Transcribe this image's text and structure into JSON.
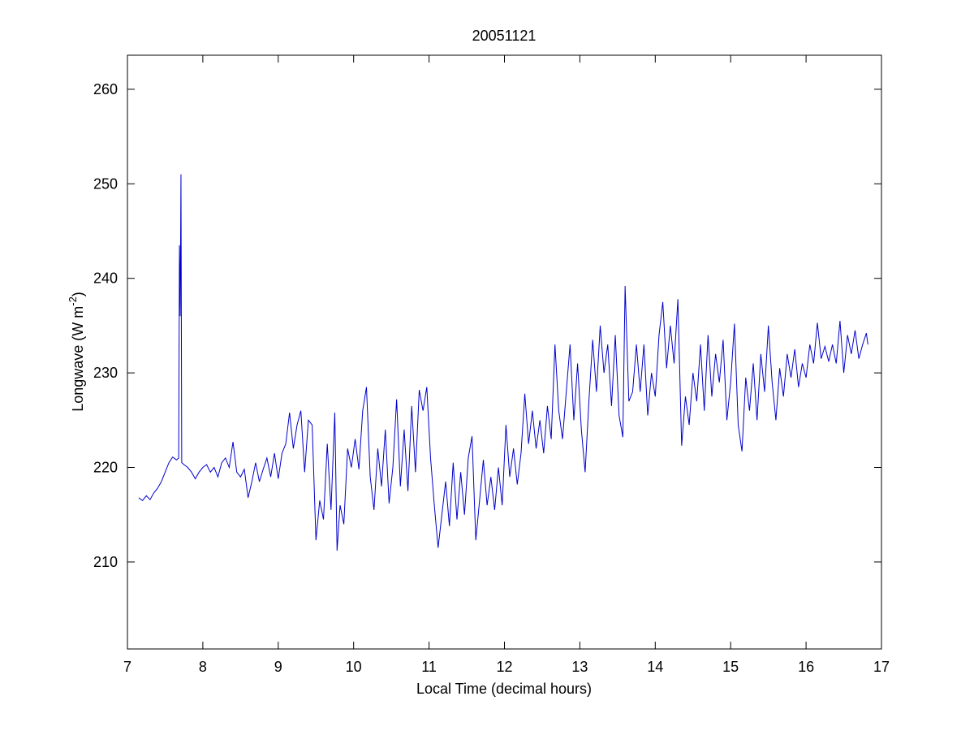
{
  "chart_data": {
    "type": "line",
    "title": "20051121",
    "x_label": "Local Time (decimal hours)",
    "y_label": {
      "text": "Longwave (W m",
      "superscript": "-2",
      "suffix": ")"
    },
    "xlim": [
      7,
      17
    ],
    "xticks": [
      7,
      8,
      9,
      10,
      11,
      12,
      13,
      14,
      15,
      16,
      17
    ],
    "ylim": [
      200.8,
      263.6
    ],
    "yticks": [
      210,
      220,
      230,
      240,
      250,
      260
    ],
    "grid": false,
    "series": [
      {
        "color": "#0000cc",
        "x": [
          7.15,
          7.2,
          7.25,
          7.3,
          7.35,
          7.4,
          7.45,
          7.5,
          7.55,
          7.6,
          7.65,
          7.68,
          7.69,
          7.7,
          7.71,
          7.72,
          7.75,
          7.8,
          7.85,
          7.9,
          7.95,
          8.0,
          8.05,
          8.1,
          8.15,
          8.2,
          8.25,
          8.3,
          8.35,
          8.4,
          8.45,
          8.5,
          8.55,
          8.6,
          8.65,
          8.7,
          8.75,
          8.8,
          8.85,
          8.9,
          8.95,
          9.0,
          9.05,
          9.1,
          9.15,
          9.2,
          9.25,
          9.3,
          9.35,
          9.4,
          9.45,
          9.5,
          9.55,
          9.6,
          9.65,
          9.7,
          9.75,
          9.78,
          9.82,
          9.87,
          9.92,
          9.97,
          10.02,
          10.07,
          10.12,
          10.17,
          10.22,
          10.27,
          10.32,
          10.37,
          10.42,
          10.47,
          10.52,
          10.57,
          10.62,
          10.67,
          10.72,
          10.77,
          10.82,
          10.87,
          10.92,
          10.97,
          11.02,
          11.07,
          11.12,
          11.17,
          11.22,
          11.27,
          11.32,
          11.37,
          11.42,
          11.47,
          11.52,
          11.57,
          11.62,
          11.67,
          11.72,
          11.77,
          11.82,
          11.87,
          11.92,
          11.97,
          12.02,
          12.07,
          12.12,
          12.17,
          12.22,
          12.27,
          12.32,
          12.37,
          12.42,
          12.47,
          12.52,
          12.57,
          12.62,
          12.67,
          12.72,
          12.77,
          12.82,
          12.87,
          12.92,
          12.97,
          13.02,
          13.07,
          13.12,
          13.17,
          13.22,
          13.27,
          13.32,
          13.37,
          13.42,
          13.47,
          13.52,
          13.57,
          13.6,
          13.65,
          13.7,
          13.75,
          13.8,
          13.85,
          13.9,
          13.95,
          14.0,
          14.05,
          14.1,
          14.15,
          14.2,
          14.25,
          14.3,
          14.35,
          14.4,
          14.45,
          14.5,
          14.55,
          14.6,
          14.65,
          14.7,
          14.75,
          14.8,
          14.85,
          14.9,
          14.95,
          15.0,
          15.05,
          15.1,
          15.15,
          15.2,
          15.25,
          15.3,
          15.35,
          15.4,
          15.45,
          15.5,
          15.55,
          15.6,
          15.65,
          15.7,
          15.75,
          15.8,
          15.85,
          15.9,
          15.95,
          16.0,
          16.05,
          16.1,
          16.15,
          16.2,
          16.25,
          16.3,
          16.35,
          16.4,
          16.45,
          16.5,
          16.55,
          16.6,
          16.65,
          16.7,
          16.75,
          16.8,
          16.82
        ],
        "values": [
          216.8,
          216.5,
          217,
          216.6,
          217.3,
          217.8,
          218.5,
          219.5,
          220.5,
          221.1,
          220.8,
          221,
          243.5,
          236,
          251,
          220.5,
          220.3,
          220,
          219.5,
          218.8,
          219.5,
          220,
          220.3,
          219.5,
          220,
          219,
          220.5,
          221,
          220,
          222.7,
          219.5,
          219,
          219.8,
          216.8,
          218.5,
          220.5,
          218.5,
          219.8,
          221,
          219,
          221.5,
          218.8,
          221.5,
          222.5,
          225.8,
          222,
          224.5,
          226,
          219.5,
          225,
          224.5,
          212.3,
          216.5,
          214.5,
          222.5,
          215.5,
          225.8,
          211.2,
          216,
          214,
          222,
          220,
          223,
          219.8,
          226,
          228.5,
          219,
          215.5,
          222,
          218,
          224,
          216.2,
          220,
          227.2,
          218,
          224,
          217.5,
          226.5,
          219.5,
          228.2,
          226,
          228.5,
          221,
          216,
          211.5,
          215,
          218.5,
          213.8,
          220.5,
          214.5,
          219.5,
          215,
          221,
          223.3,
          212.3,
          216.5,
          220.8,
          216,
          219,
          215.5,
          220,
          216,
          224.5,
          219,
          222,
          218.2,
          221.5,
          227.8,
          222.5,
          226,
          222,
          225,
          221.5,
          226.5,
          223,
          233,
          226,
          223,
          228,
          233,
          225,
          231,
          224,
          219.5,
          227,
          233.5,
          228,
          235,
          230,
          233,
          226.5,
          234,
          225.5,
          223.2,
          239.2,
          227,
          228,
          233,
          228,
          233,
          225.5,
          230,
          227.5,
          234,
          237.5,
          230.5,
          235,
          231,
          237.8,
          222.3,
          227.5,
          224.5,
          230,
          227,
          233,
          226,
          234,
          227.5,
          232,
          229,
          233.5,
          225,
          229,
          235.2,
          224.5,
          221.7,
          229.5,
          226,
          231,
          225,
          232,
          228,
          235,
          229,
          225,
          230.5,
          227.5,
          232,
          229.5,
          232.5,
          228.5,
          231,
          229.5,
          233,
          231,
          235.3,
          231.5,
          232.8,
          231.2,
          233,
          231,
          235.5,
          230,
          234,
          232,
          234.5,
          231.5,
          233,
          234.2,
          233
        ]
      }
    ]
  }
}
